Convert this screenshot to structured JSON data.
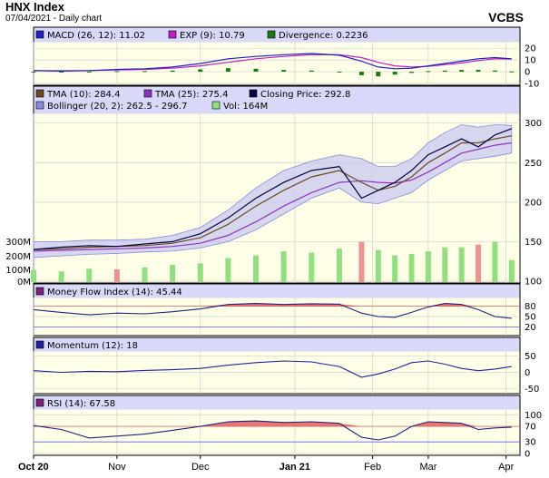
{
  "header": {
    "title": "HNX Index",
    "subtitle": "07/04/2021 - Daily chart",
    "brand": "VCBS"
  },
  "colors": {
    "panel_bg": "#ffffe8",
    "legend_bg": "#d8d8f8",
    "grid": "#cfcfcf",
    "macd": "#2020c0",
    "exp": "#c020c0",
    "divergence": "#1a7a1a",
    "tma10": "#6b4a1e",
    "tma25": "#9030c0",
    "close": "#000040",
    "bollinger": "#8888e0",
    "vol": "#90e080",
    "vol_down": "#f09090",
    "mfi": "#e06060",
    "momentum": "#2020a0",
    "rsi": "#e06060"
  },
  "chart_data": [
    {
      "type": "line",
      "name": "macd-panel",
      "legend": [
        "MACD (26, 12): 11.02",
        "EXP (9): 10.79",
        "Divergence: 0.2236"
      ],
      "y_ticks": [
        20,
        10,
        0,
        -10
      ],
      "ylim": [
        -10,
        24
      ],
      "x": [
        0,
        10,
        20,
        30,
        40,
        50,
        60,
        70,
        80,
        90,
        100,
        110,
        118,
        124,
        130,
        136,
        142,
        148,
        154,
        160,
        166,
        172
      ],
      "series": [
        {
          "name": "MACD",
          "values": [
            1,
            0.5,
            1,
            2,
            2.5,
            4,
            7,
            11,
            13,
            14.5,
            15.5,
            14,
            9,
            4,
            2.5,
            3,
            5,
            7,
            9,
            11,
            12,
            11
          ]
        },
        {
          "name": "EXP",
          "values": [
            1,
            0.8,
            1,
            1.5,
            2,
            3,
            5,
            8,
            11,
            13,
            14.5,
            14.5,
            12,
            8,
            5,
            4,
            4.5,
            6,
            7.5,
            9.5,
            11,
            10.8
          ]
        },
        {
          "name": "Divergence",
          "values": [
            0,
            -0.3,
            0,
            0.5,
            0.5,
            1,
            2,
            3,
            2.5,
            1.5,
            1,
            -0.5,
            -3,
            -4,
            -2.5,
            -1,
            0.5,
            1,
            1.5,
            1.5,
            1,
            0.2
          ]
        }
      ]
    },
    {
      "type": "line",
      "name": "price-panel",
      "legend": [
        "TMA (10): 284.4",
        "TMA (25): 275.4",
        "Closing Price: 292.8",
        "Bollinger (20, 2): 262.5 - 296.7",
        "Vol: 164M"
      ],
      "y_ticks": [
        300,
        250,
        200,
        150,
        100
      ],
      "vol_ticks": [
        "300M",
        "200M",
        "100M",
        "0M"
      ],
      "ylim": [
        100,
        310
      ],
      "vol_max": 400,
      "x": [
        0,
        10,
        20,
        30,
        40,
        50,
        60,
        70,
        80,
        90,
        100,
        110,
        118,
        124,
        130,
        136,
        142,
        148,
        154,
        160,
        166,
        172
      ],
      "series": [
        {
          "name": "Closing Price",
          "values": [
            140,
            143,
            145,
            144,
            147,
            150,
            160,
            180,
            205,
            225,
            240,
            245,
            205,
            215,
            225,
            240,
            260,
            270,
            280,
            270,
            285,
            293
          ]
        },
        {
          "name": "TMA (10)",
          "values": [
            140,
            141,
            143,
            144,
            145,
            148,
            155,
            172,
            195,
            215,
            232,
            240,
            225,
            215,
            220,
            232,
            250,
            262,
            275,
            275,
            280,
            284
          ]
        },
        {
          "name": "TMA (25)",
          "values": [
            138,
            139,
            140,
            141,
            142,
            144,
            148,
            158,
            175,
            195,
            212,
            225,
            227,
            225,
            224,
            228,
            238,
            250,
            262,
            267,
            272,
            275
          ]
        },
        {
          "name": "Bollinger Upper",
          "values": [
            150,
            150,
            152,
            152,
            153,
            158,
            168,
            190,
            218,
            240,
            252,
            260,
            255,
            245,
            245,
            255,
            275,
            288,
            298,
            295,
            298,
            297
          ]
        },
        {
          "name": "Bollinger Lower",
          "values": [
            130,
            132,
            134,
            135,
            137,
            138,
            142,
            150,
            165,
            185,
            205,
            218,
            200,
            198,
            205,
            212,
            228,
            240,
            252,
            255,
            258,
            262
          ]
        }
      ],
      "volume": [
        90,
        80,
        100,
        95,
        110,
        130,
        140,
        180,
        200,
        230,
        220,
        250,
        300,
        240,
        200,
        210,
        230,
        260,
        260,
        280,
        300,
        164
      ]
    },
    {
      "type": "area",
      "name": "mfi-panel",
      "legend": [
        "Money Flow Index (14): 45.44"
      ],
      "y_ticks": [
        80,
        50,
        20
      ],
      "ylim": [
        0,
        100
      ],
      "x": [
        0,
        10,
        20,
        30,
        40,
        50,
        60,
        70,
        80,
        90,
        100,
        110,
        118,
        124,
        130,
        136,
        142,
        148,
        154,
        160,
        166,
        172
      ],
      "series": [
        {
          "name": "MFI",
          "values": [
            70,
            62,
            55,
            60,
            58,
            64,
            72,
            85,
            88,
            85,
            87,
            86,
            60,
            50,
            48,
            62,
            78,
            88,
            85,
            70,
            50,
            45
          ]
        }
      ]
    },
    {
      "type": "line",
      "name": "momentum-panel",
      "legend": [
        "Momentum (12): 18"
      ],
      "y_ticks": [
        50,
        0,
        -50
      ],
      "ylim": [
        -60,
        60
      ],
      "x": [
        0,
        10,
        20,
        30,
        40,
        50,
        60,
        70,
        80,
        90,
        100,
        110,
        118,
        124,
        130,
        136,
        142,
        148,
        154,
        160,
        166,
        172
      ],
      "series": [
        {
          "name": "Momentum",
          "values": [
            5,
            0,
            3,
            2,
            6,
            8,
            12,
            22,
            30,
            35,
            32,
            18,
            -15,
            -5,
            10,
            30,
            35,
            25,
            12,
            5,
            10,
            18
          ]
        }
      ]
    },
    {
      "type": "area",
      "name": "rsi-panel",
      "legend": [
        "RSI (14): 67.58"
      ],
      "y_ticks": [
        100,
        70,
        30,
        0
      ],
      "ylim": [
        0,
        110
      ],
      "x": [
        0,
        10,
        20,
        30,
        40,
        50,
        60,
        70,
        80,
        90,
        100,
        110,
        118,
        124,
        130,
        136,
        142,
        148,
        154,
        160,
        166,
        172
      ],
      "series": [
        {
          "name": "RSI",
          "values": [
            72,
            62,
            40,
            45,
            50,
            60,
            70,
            82,
            84,
            80,
            82,
            78,
            42,
            35,
            45,
            70,
            82,
            80,
            78,
            62,
            66,
            68
          ]
        }
      ]
    }
  ],
  "x_axis": {
    "labels": [
      "Oct 20",
      "Nov",
      "Dec",
      "Jan 21",
      "Feb",
      "Mar",
      "Apr"
    ],
    "positions": [
      0,
      30,
      60,
      94,
      122,
      142,
      170
    ],
    "xlim": [
      0,
      175
    ]
  }
}
